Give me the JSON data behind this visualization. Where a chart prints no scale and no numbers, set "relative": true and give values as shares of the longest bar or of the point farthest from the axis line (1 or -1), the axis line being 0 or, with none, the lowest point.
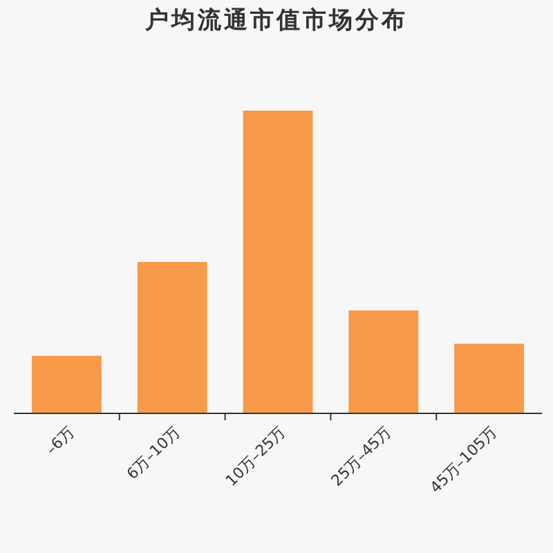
{
  "chart_data": {
    "type": "bar",
    "title": "户均流通市值市场分布",
    "categories": [
      "–6万",
      "6万–10万",
      "10万–25万",
      "25万–45万",
      "45万–105万"
    ],
    "values": [
      0.19,
      0.5,
      1,
      0.34,
      0.23
    ],
    "color": "#f79a4a",
    "relative": true
  }
}
